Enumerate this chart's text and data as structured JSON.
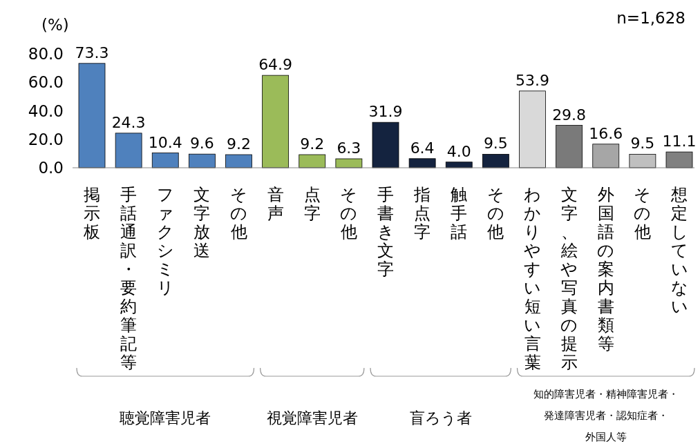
{
  "chart_data": {
    "type": "bar",
    "ylabel": "(%)",
    "categories": [
      "掲示板",
      "手話通訳・要約筆記等",
      "ファクシミリ",
      "文字放送",
      "その他",
      "音声",
      "点字",
      "その他",
      "手書き文字",
      "指点字",
      "触手話",
      "その他",
      "わかりやすい短い言葉",
      "文字、絵や写真の提示",
      "外国語の案内書類等",
      "その他",
      "想定していない"
    ],
    "values": [
      73.3,
      24.3,
      10.4,
      9.6,
      9.2,
      64.9,
      9.2,
      6.3,
      31.9,
      6.4,
      4.0,
      9.5,
      53.9,
      29.8,
      16.6,
      9.5,
      11.1
    ],
    "colors": [
      "#4f81bd",
      "#4f81bd",
      "#4f81bd",
      "#4f81bd",
      "#4f81bd",
      "#9bbb59",
      "#9bbb59",
      "#9bbb59",
      "#14233f",
      "#14233f",
      "#14233f",
      "#14233f",
      "#d9d9d9",
      "#7a7a7a",
      "#a6a6a6",
      "#bfbfbf",
      "#808080"
    ],
    "ylim": [
      0,
      80
    ],
    "yticks": [
      {
        "value": 0,
        "label": "0.0"
      },
      {
        "value": 20,
        "label": "20.0"
      },
      {
        "value": 40,
        "label": "40.0"
      },
      {
        "value": 60,
        "label": "60.0"
      },
      {
        "value": 80,
        "label": "80.0"
      }
    ],
    "value_labels": [
      "73.3",
      "24.3",
      "10.4",
      "9.6",
      "9.2",
      "64.9",
      "9.2",
      "6.3",
      "31.9",
      "6.4",
      "4.0",
      "9.5",
      "53.9",
      "29.8",
      "16.6",
      "9.5",
      "11.1"
    ],
    "grid": false,
    "legend": false,
    "annotations": [
      "n=1,628",
      "聴覚障害児者",
      "視覚障害児者",
      "盲ろう者",
      "知的障害児者・精神障害児者・発達障害児者・認知症者・外国人等"
    ]
  }
}
